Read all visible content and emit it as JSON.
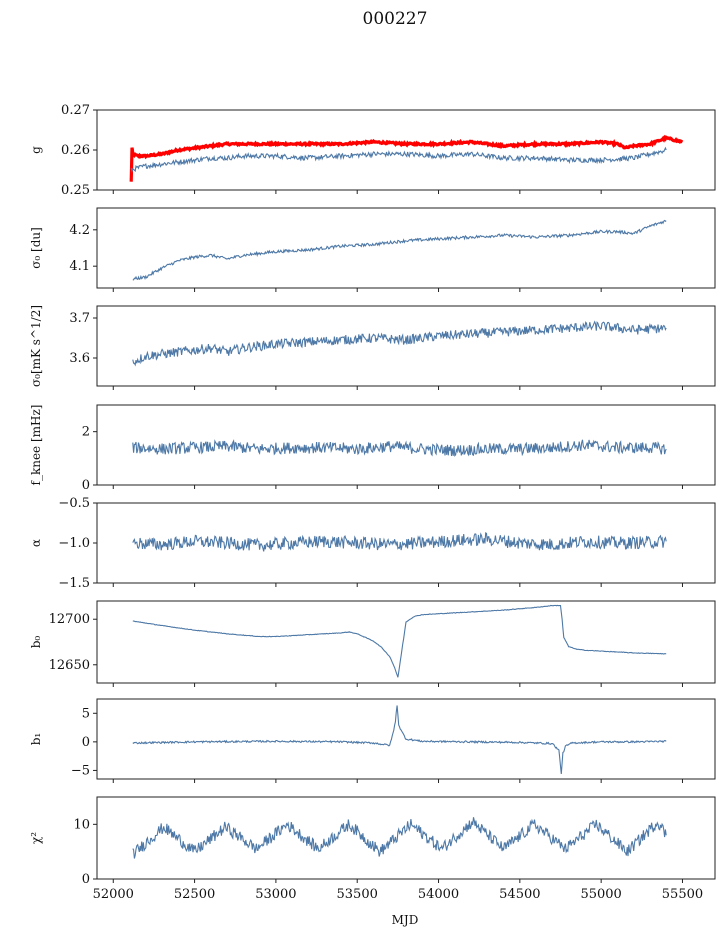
{
  "figure": {
    "title": "000227",
    "xlabel": "MJD",
    "xlim": [
      51900,
      55700
    ],
    "xticks": [
      52000,
      52500,
      53000,
      53500,
      54000,
      54500,
      55000,
      55500
    ],
    "xtick_labels": [
      "52000",
      "52500",
      "53000",
      "53500",
      "54000",
      "54500",
      "55000",
      "55500"
    ]
  },
  "colors": {
    "series": "#4e79a7",
    "highlight": "#ff0000",
    "frame": "#222222"
  },
  "chart_data": [
    {
      "type": "line",
      "id": "g",
      "ylabel": "g",
      "ylim": [
        0.25,
        0.27
      ],
      "yticks": [
        0.25,
        0.26,
        0.27
      ],
      "ytick_labels": [
        "0.25",
        "0.26",
        "0.27"
      ],
      "series": [
        {
          "color": "#ff0000",
          "x": [
            52110,
            52115,
            52120,
            52150,
            52200,
            52300,
            52400,
            52500,
            52600,
            52700,
            52800,
            53000,
            53200,
            53400,
            53600,
            53800,
            54000,
            54200,
            54400,
            54600,
            54800,
            55000,
            55100,
            55150,
            55200,
            55300,
            55400,
            55450,
            55500
          ],
          "y": [
            0.252,
            0.2605,
            0.259,
            0.2585,
            0.2585,
            0.259,
            0.26,
            0.2605,
            0.261,
            0.2615,
            0.2615,
            0.2615,
            0.2615,
            0.2615,
            0.262,
            0.2615,
            0.2615,
            0.262,
            0.261,
            0.2615,
            0.2615,
            0.262,
            0.2615,
            0.2605,
            0.261,
            0.2615,
            0.263,
            0.2625,
            0.262
          ]
        },
        {
          "color": "#4e79a7",
          "x": [
            52110,
            52150,
            52200,
            52300,
            52400,
            52500,
            52600,
            52700,
            52800,
            53000,
            53200,
            53400,
            53600,
            53800,
            54000,
            54200,
            54400,
            54600,
            54800,
            55000,
            55200,
            55400
          ],
          "y": [
            0.255,
            0.2555,
            0.256,
            0.2565,
            0.257,
            0.2575,
            0.258,
            0.258,
            0.2585,
            0.2585,
            0.258,
            0.2585,
            0.259,
            0.259,
            0.2585,
            0.259,
            0.258,
            0.258,
            0.2575,
            0.2575,
            0.258,
            0.26
          ]
        }
      ]
    },
    {
      "type": "line",
      "id": "sigma0_du",
      "ylabel": "σ₀ [du]",
      "ylim": [
        4.04,
        4.26
      ],
      "yticks": [
        4.1,
        4.2
      ],
      "ytick_labels": [
        "4.1",
        "4.2"
      ],
      "series": [
        {
          "color": "#4e79a7",
          "x": [
            52120,
            52200,
            52300,
            52400,
            52500,
            52600,
            52700,
            52800,
            53000,
            53200,
            53400,
            53600,
            53800,
            54000,
            54200,
            54400,
            54600,
            54800,
            55000,
            55100,
            55200,
            55300,
            55400
          ],
          "y": [
            4.065,
            4.07,
            4.095,
            4.115,
            4.125,
            4.13,
            4.12,
            4.13,
            4.14,
            4.145,
            4.155,
            4.16,
            4.17,
            4.175,
            4.18,
            4.185,
            4.18,
            4.185,
            4.195,
            4.195,
            4.19,
            4.21,
            4.225
          ]
        }
      ]
    },
    {
      "type": "line",
      "id": "sigma0_mks",
      "ylabel": "σ₀[mK s^1/2]",
      "ylim": [
        3.53,
        3.73
      ],
      "yticks": [
        3.6,
        3.7
      ],
      "ytick_labels": [
        "3.6",
        "3.7"
      ],
      "series": [
        {
          "color": "#4e79a7",
          "x": [
            52120,
            52200,
            52300,
            52400,
            52500,
            52600,
            52700,
            52800,
            53000,
            53200,
            53400,
            53600,
            53800,
            54000,
            54200,
            54400,
            54600,
            54800,
            55000,
            55200,
            55400
          ],
          "y": [
            3.59,
            3.605,
            3.61,
            3.615,
            3.62,
            3.625,
            3.615,
            3.625,
            3.635,
            3.64,
            3.645,
            3.65,
            3.645,
            3.655,
            3.66,
            3.665,
            3.67,
            3.675,
            3.68,
            3.67,
            3.675
          ]
        }
      ]
    },
    {
      "type": "line",
      "id": "f_knee",
      "ylabel": "f_knee [mHz]",
      "ylim": [
        0,
        3
      ],
      "yticks": [
        0,
        2
      ],
      "ytick_labels": [
        "0",
        "2"
      ],
      "series": [
        {
          "color": "#4e79a7",
          "x": [
            52120,
            52300,
            52500,
            52700,
            52900,
            53100,
            53300,
            53500,
            53700,
            53900,
            54100,
            54300,
            54500,
            54700,
            54900,
            55100,
            55300,
            55400
          ],
          "y": [
            1.4,
            1.35,
            1.4,
            1.45,
            1.35,
            1.4,
            1.4,
            1.35,
            1.45,
            1.35,
            1.3,
            1.35,
            1.35,
            1.4,
            1.5,
            1.4,
            1.4,
            1.35
          ]
        }
      ]
    },
    {
      "type": "line",
      "id": "alpha",
      "ylabel": "α",
      "ylim": [
        -1.5,
        -0.5
      ],
      "yticks": [
        -1.5,
        -1.0,
        -0.5
      ],
      "ytick_labels": [
        "−1.5",
        "−1.0",
        "−0.5"
      ],
      "series": [
        {
          "color": "#4e79a7",
          "x": [
            52120,
            52300,
            52500,
            52700,
            52900,
            53100,
            53300,
            53500,
            53700,
            53900,
            54100,
            54300,
            54500,
            54700,
            54900,
            55100,
            55300,
            55400
          ],
          "y": [
            -1.0,
            -1.02,
            -0.98,
            -1.0,
            -1.03,
            -1.0,
            -0.98,
            -1.0,
            -1.02,
            -1.0,
            -0.97,
            -0.95,
            -1.0,
            -1.02,
            -0.98,
            -1.0,
            -0.99,
            -0.98
          ]
        }
      ]
    },
    {
      "type": "line",
      "id": "b0",
      "ylabel": "b₀",
      "ylim": [
        12630,
        12720
      ],
      "yticks": [
        12650,
        12700
      ],
      "ytick_labels": [
        "12650",
        "12700"
      ],
      "series": [
        {
          "color": "#4e79a7",
          "x": [
            52120,
            52300,
            52500,
            52700,
            52900,
            53000,
            53200,
            53300,
            53400,
            53450,
            53500,
            53600,
            53650,
            53700,
            53730,
            53750,
            53770,
            53800,
            53850,
            53900,
            54000,
            54200,
            54400,
            54600,
            54700,
            54750,
            54760,
            54770,
            54800,
            54850,
            54900,
            55000,
            55200,
            55400
          ],
          "y": [
            12698,
            12693,
            12688,
            12684,
            12681,
            12681,
            12683,
            12684,
            12685,
            12686,
            12684,
            12676,
            12669,
            12659,
            12647,
            12636,
            12660,
            12697,
            12703,
            12705,
            12706,
            12708,
            12710,
            12713,
            12715,
            12715,
            12700,
            12680,
            12670,
            12667,
            12666,
            12665,
            12663,
            12662
          ]
        }
      ]
    },
    {
      "type": "line",
      "id": "b1",
      "ylabel": "b₁",
      "ylim": [
        -6.5,
        7.5
      ],
      "yticks": [
        -5,
        0,
        5
      ],
      "ytick_labels": [
        "−5",
        "0",
        "5"
      ],
      "series": [
        {
          "color": "#4e79a7",
          "x": [
            52120,
            52500,
            53000,
            53400,
            53600,
            53700,
            53720,
            53735,
            53745,
            53755,
            53770,
            53800,
            53900,
            54200,
            54500,
            54700,
            54740,
            54755,
            54765,
            54780,
            54820,
            55000,
            55200,
            55400
          ],
          "y": [
            -0.2,
            0.0,
            0.1,
            0.0,
            -0.2,
            -0.6,
            1.5,
            3.5,
            6.5,
            3.0,
            2.0,
            0.5,
            0.1,
            0.0,
            -0.1,
            -0.3,
            -1.5,
            -5.5,
            -2.0,
            -0.8,
            -0.2,
            0.0,
            0.0,
            0.1
          ]
        }
      ]
    },
    {
      "type": "line",
      "id": "chi2",
      "ylabel": "χ²",
      "ylim": [
        0,
        15
      ],
      "yticks": [
        0,
        10
      ],
      "ytick_labels": [
        "0",
        "10"
      ],
      "series": [
        {
          "color": "#4e79a7",
          "x": [
            52120,
            52310,
            52500,
            52690,
            52880,
            53070,
            53260,
            53450,
            53640,
            53830,
            54020,
            54210,
            54400,
            54590,
            54780,
            54970,
            55160,
            55350,
            55400
          ],
          "y": [
            4.5,
            9.5,
            5.0,
            9.5,
            5.5,
            10.0,
            5.5,
            10.0,
            5.0,
            10.0,
            5.5,
            10.5,
            5.5,
            10.0,
            5.5,
            10.0,
            5.0,
            10.5,
            8.0
          ]
        }
      ]
    }
  ]
}
